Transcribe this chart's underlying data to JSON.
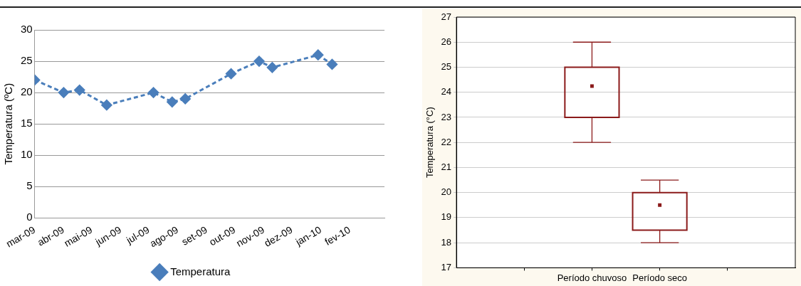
{
  "chart_data": [
    {
      "type": "line",
      "ylabel": "Temperatura (ºC)",
      "x": [
        "2009-03-01",
        "2009-04-01",
        "2009-04-18",
        "2009-05-17",
        "2009-07-06",
        "2009-07-26",
        "2009-08-09",
        "2009-09-27",
        "2009-10-27",
        "2009-11-10",
        "2009-12-29",
        "2010-01-13"
      ],
      "series": [
        {
          "name": "Temperatura",
          "color": "#4a7ebb",
          "values": [
            22,
            20,
            20.4,
            18,
            20,
            18.5,
            19,
            23,
            25,
            24,
            26,
            24.5
          ]
        }
      ],
      "xlim": [
        "2009-03-01",
        "2010-03-10"
      ],
      "xticks": [
        {
          "value": "2009-03-01",
          "label": "mar-09"
        },
        {
          "value": "2009-04-01",
          "label": "abr-09"
        },
        {
          "value": "2009-05-01",
          "label": "mai-09"
        },
        {
          "value": "2009-06-01",
          "label": "jun-09"
        },
        {
          "value": "2009-07-01",
          "label": "jul-09"
        },
        {
          "value": "2009-08-01",
          "label": "ago-09"
        },
        {
          "value": "2009-09-01",
          "label": "set-09"
        },
        {
          "value": "2009-10-01",
          "label": "out-09"
        },
        {
          "value": "2009-11-01",
          "label": "nov-09"
        },
        {
          "value": "2009-12-01",
          "label": "dez-09"
        },
        {
          "value": "2010-01-01",
          "label": "jan-10"
        },
        {
          "value": "2010-02-01",
          "label": "fev-10"
        }
      ],
      "ylim": [
        0,
        30
      ],
      "yticks": [
        0,
        5,
        10,
        15,
        20,
        25,
        30
      ],
      "grid": "y",
      "legend": "bottom",
      "marker": "diamond",
      "line_style": "dashed"
    },
    {
      "type": "box",
      "ylabel": "Temperatura (°C)",
      "categories": [
        "Período chuvoso",
        "Período seco"
      ],
      "series": [
        {
          "color": "#8b1a1a",
          "boxes": [
            {
              "low": 22,
              "q1": 23,
              "median": 24.25,
              "q3": 25,
              "high": 26
            },
            {
              "low": 18,
              "q1": 18.5,
              "median": 19.5,
              "q3": 20,
              "high": 20.5
            }
          ]
        }
      ],
      "ylim": [
        17,
        27
      ],
      "yticks": [
        17,
        18,
        19,
        20,
        21,
        22,
        23,
        24,
        25,
        26,
        27
      ],
      "grid": "y",
      "marker": "square"
    }
  ]
}
